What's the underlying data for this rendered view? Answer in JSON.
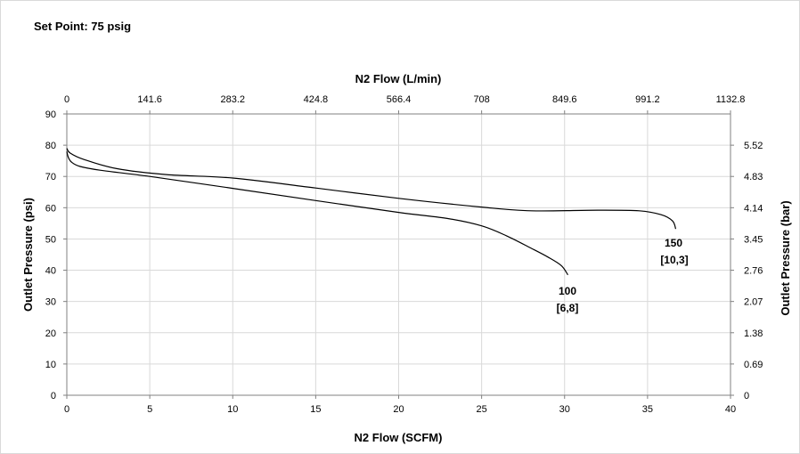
{
  "chart_data": {
    "type": "line",
    "title": "Set Point: 75 psig",
    "xlabel": "N2 Flow (SCFM)",
    "xlabel_top": "N2 Flow (L/min)",
    "ylabel": "Outlet Pressure (psi)",
    "ylabel_right": "Outlet Pressure (bar)",
    "xlim": [
      0,
      40
    ],
    "ylim": [
      0,
      90
    ],
    "x_ticks": [
      "0",
      "5",
      "10",
      "15",
      "20",
      "25",
      "30",
      "35",
      "40"
    ],
    "y_ticks": [
      "0",
      "10",
      "20",
      "30",
      "40",
      "50",
      "60",
      "70",
      "80",
      "90"
    ],
    "x_top_ticks": [
      "0",
      "141.6",
      "283.2",
      "424.8",
      "566.4",
      "708",
      "849.6",
      "991.2",
      "1132.8"
    ],
    "y_right_ticks": [
      {
        "label": "0",
        "value": 0
      },
      {
        "label": "0.69",
        "value": 10
      },
      {
        "label": "1.38",
        "value": 20
      },
      {
        "label": "2.07",
        "value": 30
      },
      {
        "label": "2.76",
        "value": 40
      },
      {
        "label": "3.45",
        "value": 50
      },
      {
        "label": "4.14",
        "value": 60
      },
      {
        "label": "4.83",
        "value": 70
      },
      {
        "label": "5.52",
        "value": 80
      }
    ],
    "grid": true,
    "series": [
      {
        "name": "100",
        "name_line2": "[6,8]",
        "x": [
          0.0,
          0.1,
          0.3,
          0.8,
          2.0,
          5.0,
          10.0,
          15.0,
          20.0,
          23.0,
          25.0,
          26.5,
          28.0,
          29.0,
          29.8,
          30.2
        ],
        "y": [
          78.0,
          76.0,
          74.5,
          73.2,
          72.0,
          70.0,
          66.2,
          62.3,
          58.5,
          56.5,
          54.2,
          51.0,
          47.0,
          44.2,
          41.5,
          38.5
        ]
      },
      {
        "name": "150",
        "name_line2": "[10,3]",
        "x": [
          0.0,
          0.2,
          1.0,
          3.0,
          6.0,
          10.0,
          15.0,
          20.0,
          25.0,
          28.0,
          32.0,
          34.5,
          35.8,
          36.5,
          36.7
        ],
        "y": [
          79.0,
          77.5,
          75.5,
          72.5,
          70.6,
          69.5,
          66.3,
          63.0,
          60.2,
          59.0,
          59.2,
          59.0,
          57.8,
          55.8,
          53.2
        ]
      }
    ],
    "legend": "none"
  }
}
